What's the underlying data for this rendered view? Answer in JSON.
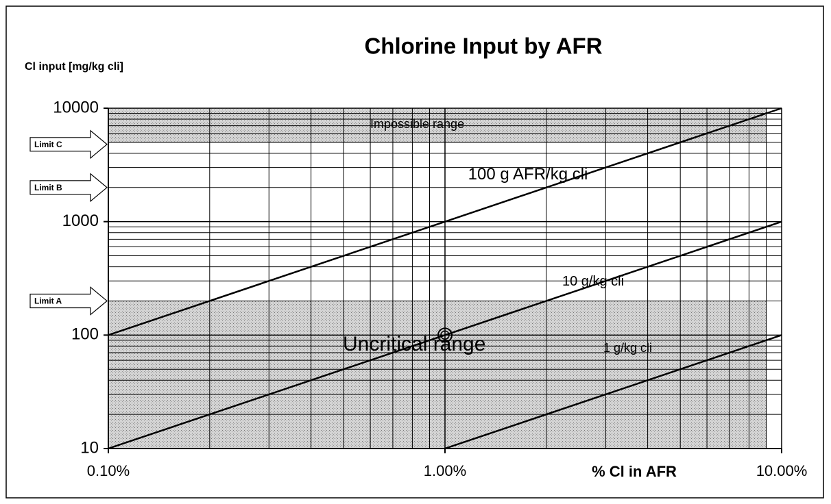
{
  "chart_data": {
    "type": "line",
    "title": "Chlorine Input by AFR",
    "y_label": "Cl input [mg/kg cli]",
    "x_label": "% Cl in AFR",
    "xscale": "log",
    "yscale": "log",
    "grid": true,
    "xlim": [
      0.1,
      10
    ],
    "xticks": [
      {
        "value": 0.1,
        "label": "0.10%"
      },
      {
        "value": 1,
        "label": "1.00%"
      },
      {
        "value": 10,
        "label": "10.00%"
      }
    ],
    "ylim": [
      10,
      10000
    ],
    "yticks": [
      10,
      100,
      1000,
      10000
    ],
    "series": [
      {
        "name": "100 g AFR/kg cli",
        "color": "#000000",
        "x": [
          0.1,
          10
        ],
        "values": [
          100,
          10000
        ]
      },
      {
        "name": "10 g/kg cli",
        "color": "#000000",
        "x": [
          0.1,
          10
        ],
        "values": [
          10,
          1000
        ]
      },
      {
        "name": "1 g/kg cli",
        "color": "#000000",
        "x": [
          1,
          10
        ],
        "values": [
          10,
          100
        ]
      }
    ],
    "bands": [
      {
        "label": "Impossible range",
        "x0": 0.1,
        "x1": 9,
        "y0": 5000,
        "y1": 10000
      },
      {
        "label": "Uncritical range",
        "x0": 0.1,
        "x1": 9,
        "y0": 10,
        "y1": 200
      }
    ],
    "limits": [
      {
        "label": "Limit A",
        "value": 200
      },
      {
        "label": "Limit B",
        "value": 2000
      },
      {
        "label": "Limit C",
        "value": 4800
      }
    ],
    "marker": {
      "x": 1,
      "y": 100
    }
  }
}
